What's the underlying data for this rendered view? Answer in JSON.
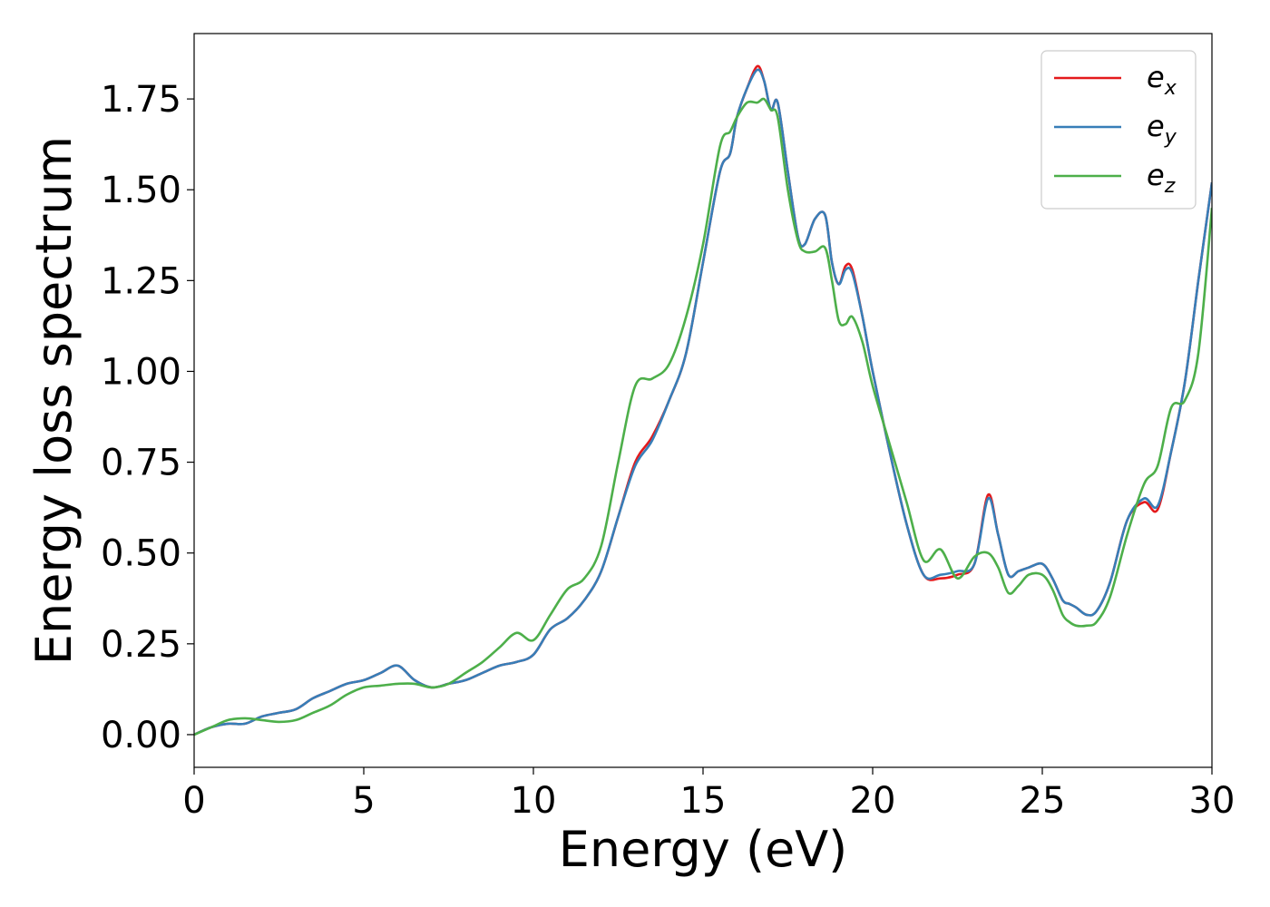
{
  "chart_data": {
    "type": "line",
    "title": "",
    "xlabel": "Energy (eV)",
    "ylabel": "Energy loss spectrum",
    "xlim": [
      0,
      30
    ],
    "ylim": [
      -0.09,
      1.93
    ],
    "xticks": [
      0,
      5,
      10,
      15,
      20,
      25,
      30
    ],
    "xtick_labels": [
      "0",
      "5",
      "10",
      "15",
      "20",
      "25",
      "30"
    ],
    "yticks": [
      0,
      0.25,
      0.5,
      0.75,
      1.0,
      1.25,
      1.5,
      1.75
    ],
    "ytick_labels": [
      "0.00",
      "0.25",
      "0.50",
      "0.75",
      "1.00",
      "1.25",
      "1.50",
      "1.75"
    ],
    "grid": false,
    "legend_position": "top-right",
    "series": [
      {
        "name": "e_x",
        "label_base": "e",
        "label_sub": "x",
        "color": "#e41a1c",
        "x": [
          0,
          0.5,
          1,
          1.5,
          2,
          2.5,
          3,
          3.5,
          4,
          4.5,
          5,
          5.5,
          6,
          6.5,
          7,
          7.5,
          8,
          8.5,
          9,
          9.5,
          10,
          10.5,
          11,
          11.5,
          12,
          12.5,
          13,
          13.5,
          14,
          14.5,
          15,
          15.5,
          15.8,
          16,
          16.3,
          16.6,
          16.8,
          17,
          17.2,
          17.5,
          17.8,
          18,
          18.3,
          18.6,
          18.8,
          19,
          19.2,
          19.4,
          19.7,
          20,
          20.5,
          21,
          21.5,
          22,
          22.5,
          23,
          23.4,
          23.7,
          24,
          24.3,
          24.6,
          25,
          25.3,
          25.6,
          25.8,
          26,
          26.3,
          26.6,
          27,
          27.5,
          28,
          28.4,
          28.8,
          29.2,
          29.6,
          30
        ],
        "y": [
          0,
          0.02,
          0.03,
          0.03,
          0.05,
          0.06,
          0.07,
          0.1,
          0.12,
          0.14,
          0.15,
          0.17,
          0.19,
          0.15,
          0.13,
          0.14,
          0.15,
          0.17,
          0.19,
          0.2,
          0.22,
          0.29,
          0.32,
          0.37,
          0.45,
          0.6,
          0.75,
          0.82,
          0.92,
          1.05,
          1.3,
          1.55,
          1.6,
          1.7,
          1.78,
          1.84,
          1.8,
          1.72,
          1.74,
          1.55,
          1.37,
          1.35,
          1.42,
          1.43,
          1.3,
          1.24,
          1.29,
          1.28,
          1.15,
          1.0,
          0.78,
          0.58,
          0.44,
          0.43,
          0.44,
          0.47,
          0.66,
          0.55,
          0.44,
          0.45,
          0.46,
          0.47,
          0.43,
          0.37,
          0.36,
          0.35,
          0.33,
          0.34,
          0.42,
          0.59,
          0.64,
          0.62,
          0.78,
          0.97,
          1.25,
          1.52
        ]
      },
      {
        "name": "e_y",
        "label_base": "e",
        "label_sub": "y",
        "color": "#377eb8",
        "x": [
          0,
          0.5,
          1,
          1.5,
          2,
          2.5,
          3,
          3.5,
          4,
          4.5,
          5,
          5.5,
          6,
          6.5,
          7,
          7.5,
          8,
          8.5,
          9,
          9.5,
          10,
          10.5,
          11,
          11.5,
          12,
          12.5,
          13,
          13.5,
          14,
          14.5,
          15,
          15.5,
          15.8,
          16,
          16.3,
          16.6,
          16.8,
          17,
          17.2,
          17.5,
          17.8,
          18,
          18.3,
          18.6,
          18.8,
          19,
          19.2,
          19.4,
          19.7,
          20,
          20.5,
          21,
          21.5,
          22,
          22.5,
          23,
          23.4,
          23.7,
          24,
          24.3,
          24.6,
          25,
          25.3,
          25.6,
          25.8,
          26,
          26.3,
          26.6,
          27,
          27.5,
          28,
          28.4,
          28.8,
          29.2,
          29.6,
          30
        ],
        "y": [
          0,
          0.02,
          0.03,
          0.03,
          0.05,
          0.06,
          0.07,
          0.1,
          0.12,
          0.14,
          0.15,
          0.17,
          0.19,
          0.15,
          0.13,
          0.14,
          0.15,
          0.17,
          0.19,
          0.2,
          0.22,
          0.29,
          0.32,
          0.37,
          0.45,
          0.6,
          0.74,
          0.81,
          0.92,
          1.05,
          1.3,
          1.55,
          1.6,
          1.7,
          1.78,
          1.83,
          1.8,
          1.72,
          1.74,
          1.55,
          1.37,
          1.35,
          1.42,
          1.43,
          1.3,
          1.24,
          1.28,
          1.27,
          1.15,
          1.0,
          0.78,
          0.58,
          0.44,
          0.44,
          0.45,
          0.47,
          0.65,
          0.55,
          0.44,
          0.45,
          0.46,
          0.47,
          0.43,
          0.37,
          0.36,
          0.35,
          0.33,
          0.34,
          0.42,
          0.59,
          0.65,
          0.63,
          0.78,
          0.97,
          1.25,
          1.52
        ]
      },
      {
        "name": "e_z",
        "label_base": "e",
        "label_sub": "z",
        "color": "#4daf4a",
        "x": [
          0,
          0.5,
          1,
          1.5,
          2,
          2.5,
          3,
          3.5,
          4,
          4.5,
          5,
          5.5,
          6,
          6.5,
          7,
          7.5,
          8,
          8.5,
          9,
          9.5,
          10,
          10.5,
          11,
          11.5,
          12,
          12.5,
          13,
          13.5,
          14,
          14.5,
          15,
          15.5,
          15.8,
          16,
          16.3,
          16.6,
          16.8,
          17,
          17.2,
          17.5,
          17.8,
          18,
          18.3,
          18.6,
          18.8,
          19,
          19.2,
          19.4,
          19.7,
          20,
          20.5,
          21,
          21.5,
          22,
          22.5,
          23,
          23.4,
          23.7,
          24,
          24.3,
          24.6,
          25,
          25.3,
          25.6,
          25.8,
          26,
          26.3,
          26.6,
          27,
          27.5,
          28,
          28.4,
          28.8,
          29.2,
          29.6,
          30
        ],
        "y": [
          0,
          0.02,
          0.04,
          0.045,
          0.04,
          0.035,
          0.04,
          0.06,
          0.08,
          0.11,
          0.13,
          0.135,
          0.14,
          0.14,
          0.13,
          0.14,
          0.17,
          0.2,
          0.24,
          0.28,
          0.26,
          0.33,
          0.4,
          0.43,
          0.52,
          0.75,
          0.96,
          0.98,
          1.02,
          1.15,
          1.35,
          1.62,
          1.66,
          1.7,
          1.74,
          1.74,
          1.75,
          1.72,
          1.7,
          1.5,
          1.36,
          1.33,
          1.33,
          1.34,
          1.25,
          1.14,
          1.13,
          1.15,
          1.08,
          0.96,
          0.8,
          0.64,
          0.48,
          0.51,
          0.43,
          0.49,
          0.5,
          0.46,
          0.39,
          0.41,
          0.44,
          0.44,
          0.4,
          0.33,
          0.31,
          0.3,
          0.3,
          0.31,
          0.38,
          0.55,
          0.69,
          0.74,
          0.9,
          0.92,
          1.05,
          1.45
        ]
      }
    ]
  }
}
